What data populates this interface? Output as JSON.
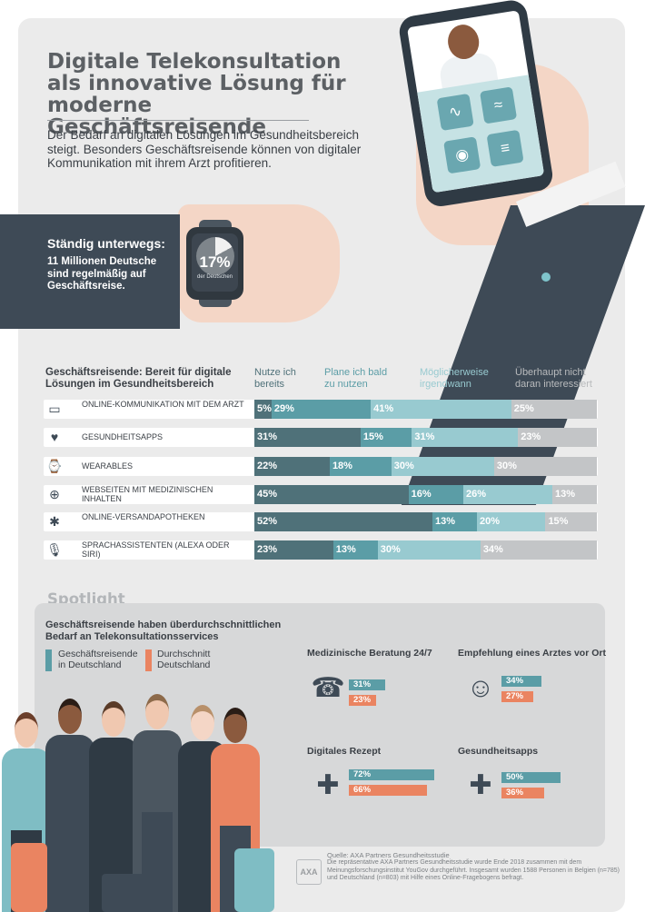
{
  "title": "Digitale Telekonsultation als innovative Lösung für moderne Geschäftsreisende",
  "intro": "Der Bedarf an digitalen Lösungen im Gesundheitsbereich steigt. Besonders Geschäftsreisende können von digitaler Kommunikation mit ihrem Arzt profitieren.",
  "travel": {
    "title": "Ständig unterwegs:",
    "text": "11 Millionen Deutsche sind regelmäßig auf Geschäftsreise.",
    "watch_value": "17%",
    "watch_caption": "der Deutschen",
    "watch_fraction": 0.17
  },
  "colors": {
    "dark": "#4f7179",
    "mid": "#5b9da6",
    "light": "#98cad0",
    "grey": "#c3c5c7",
    "orange": "#ea8461"
  },
  "chart_data": [
    {
      "type": "bar",
      "title": "Geschäftsreisende: Bereit für digitale Lösungen im Gesundheitsbereich",
      "categories": [
        "ONLINE-KOMMUNIKATION MIT DEM ARZT",
        "GESUNDHEITSAPPS",
        "WEARABLES",
        "WEBSEITEN MIT MEDIZINISCHEN INHALTEN",
        "ONLINE-VERSANDAPOTHEKEN",
        "SPRACHASSISTENTEN (ALEXA ODER SIRI)"
      ],
      "series": [
        {
          "name": "Nutze ich bereits",
          "values": [
            5,
            31,
            22,
            45,
            52,
            23
          ]
        },
        {
          "name": "Plane ich bald zu nutzen",
          "values": [
            29,
            15,
            18,
            16,
            13,
            13
          ]
        },
        {
          "name": "Möglicherweise irgendwann",
          "values": [
            41,
            31,
            30,
            26,
            20,
            30
          ]
        },
        {
          "name": "Überhaupt nicht daran interessiert",
          "values": [
            25,
            23,
            30,
            13,
            15,
            34
          ]
        }
      ],
      "stacked": true,
      "orientation": "horizontal",
      "unit": "%"
    },
    {
      "type": "bar",
      "title": "Geschäftsreisende haben überdurchschnittlichen Bedarf an Telekonsultationsservices",
      "categories": [
        "Medizinische Beratung 24/7",
        "Empfehlung eines Arztes vor Ort",
        "Digitales Rezept",
        "Gesundheitsapps"
      ],
      "series": [
        {
          "name": "Geschäftsreisende in Deutschland",
          "values": [
            31,
            34,
            72,
            50
          ]
        },
        {
          "name": "Durchschnitt Deutschland",
          "values": [
            23,
            27,
            66,
            36
          ]
        }
      ],
      "orientation": "horizontal",
      "unit": "%"
    }
  ],
  "rows": [
    {
      "label": "ONLINE-KOMMUNIKATION MIT DEM ARZT",
      "icon": "chat-icon",
      "glyph": "▭"
    },
    {
      "label": "GESUNDHEITSAPPS",
      "icon": "heart-icon",
      "glyph": "♥"
    },
    {
      "label": "WEARABLES",
      "icon": "smartwatch-icon",
      "glyph": "⌚"
    },
    {
      "label": "WEBSEITEN MIT MEDIZINISCHEN INHALTEN",
      "icon": "medical-website-icon",
      "glyph": "⊕"
    },
    {
      "label": "ONLINE-VERSANDAPOTHEKEN",
      "icon": "medical-star-icon",
      "glyph": "✱"
    },
    {
      "label": "SPRACHASSISTENTEN (ALEXA ODER SIRI)",
      "icon": "microphone-icon",
      "glyph": "🎙"
    }
  ],
  "headers": [
    "Nutze ich bereits",
    "Plane ich bald zu nutzen",
    "Möglicherweise irgendwann",
    "Überhaupt nicht daran interessiert"
  ],
  "spotlight": {
    "title": "Spotlight",
    "subtitle": "Geschäftsreisende haben überdurchschnittlichen Bedarf an Telekonsultationsservices",
    "legend": [
      "Geschäftsreisende in Deutschland",
      "Durchschnitt Deutschland"
    ],
    "items": [
      {
        "title": "Medizinische Beratung 24/7",
        "icon": "stethoscope-phone-icon",
        "glyph": "☎"
      },
      {
        "title": "Empfehlung eines Arztes vor Ort",
        "icon": "doctor-icon",
        "glyph": "☺"
      },
      {
        "title": "Digitales Rezept",
        "icon": "prescription-icon",
        "glyph": "✚"
      },
      {
        "title": "Gesundheitsapps",
        "icon": "health-app-icon",
        "glyph": "✚"
      }
    ]
  },
  "source": {
    "title": "Quelle: AXA Partners Gesundheitsstudie",
    "text": "Die repräsentative AXA Partners Gesundheitsstudie wurde Ende 2018 zusammen mit dem Meinungsforschungsinstitut YouGov durchgeführt. Insgesamt wurden 1588 Personen in Belgien (n=785) und Deutschland (n=803) mit Hilfe eines Online-Fragebogens befragt.",
    "logo": "AXA"
  }
}
